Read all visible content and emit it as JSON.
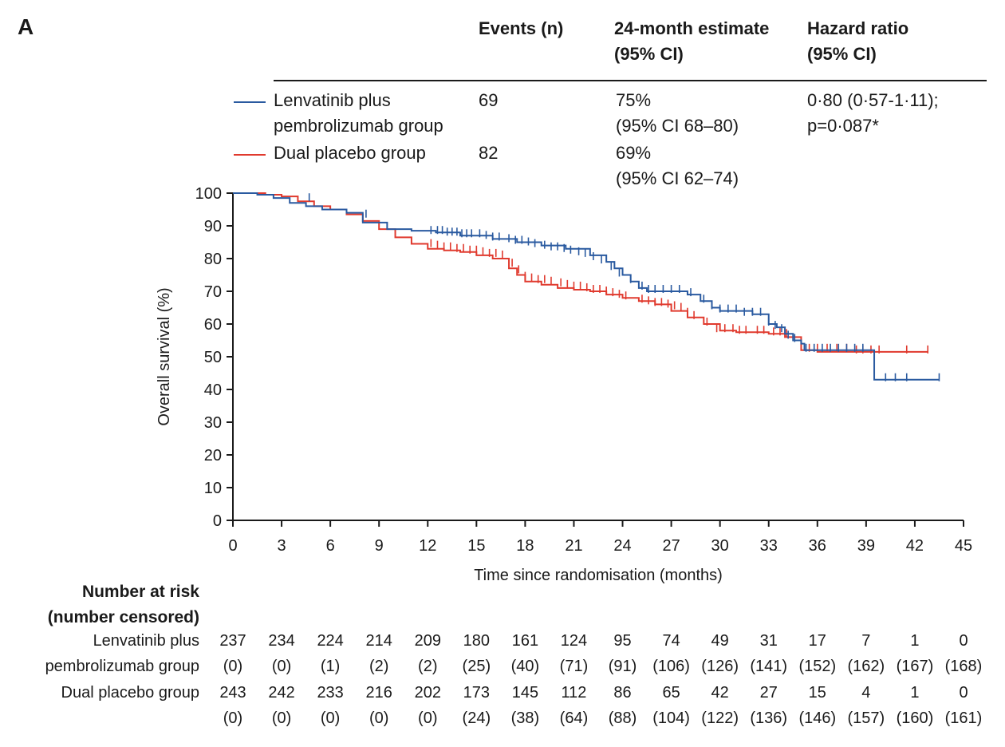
{
  "panel_label": "A",
  "table": {
    "headers": {
      "events": "Events (n)",
      "estimate": "24-month estimate\n(95% CI)",
      "hr": "Hazard ratio\n(95% CI)"
    },
    "rows": [
      {
        "group": "Lenvatinib plus\npembrolizumab group",
        "events": "69",
        "estimate": "75%\n(95% CI 68–80)",
        "hr": "0·80 (0·57-1·11);\np=0·087*"
      },
      {
        "group": "Dual placebo group",
        "events": "82",
        "estimate": "69%\n(95% CI 62–74)",
        "hr": ""
      }
    ]
  },
  "colors": {
    "lenvatinib": "#2a5aa0",
    "placebo": "#e03a2e",
    "axis": "#1a1a1a"
  },
  "risk_table": {
    "title": "Number at risk\n(number censored)",
    "rows": [
      {
        "label1": "Lenvatinib plus",
        "label2": "pembrolizumab group",
        "at_risk": [
          "237",
          "234",
          "224",
          "214",
          "209",
          "180",
          "161",
          "124",
          "95",
          "74",
          "49",
          "31",
          "17",
          "7",
          "1",
          "0"
        ],
        "censored": [
          "(0)",
          "(0)",
          "(1)",
          "(2)",
          "(2)",
          "(25)",
          "(40)",
          "(71)",
          "(91)",
          "(106)",
          "(126)",
          "(141)",
          "(152)",
          "(162)",
          "(167)",
          "(168)"
        ]
      },
      {
        "label1": "Dual placebo group",
        "label2": "",
        "at_risk": [
          "243",
          "242",
          "233",
          "216",
          "202",
          "173",
          "145",
          "112",
          "86",
          "65",
          "42",
          "27",
          "15",
          "4",
          "1",
          "0"
        ],
        "censored": [
          "(0)",
          "(0)",
          "(0)",
          "(0)",
          "(0)",
          "(24)",
          "(38)",
          "(64)",
          "(88)",
          "(104)",
          "(122)",
          "(136)",
          "(146)",
          "(157)",
          "(160)",
          "(161)"
        ]
      }
    ]
  },
  "chart_data": {
    "type": "line",
    "xlabel": "Time since randomisation (months)",
    "ylabel": "Overall survival (%)",
    "xlim": [
      0,
      45
    ],
    "ylim": [
      0,
      100
    ],
    "xticks": [
      0,
      3,
      6,
      9,
      12,
      15,
      18,
      21,
      24,
      27,
      30,
      33,
      36,
      39,
      42,
      45
    ],
    "yticks": [
      0,
      10,
      20,
      30,
      40,
      50,
      60,
      70,
      80,
      90,
      100
    ],
    "grid": false,
    "legend_placement": "top (table)",
    "series": [
      {
        "name": "Lenvatinib plus pembrolizumab group",
        "color": "#2a5aa0",
        "x": [
          0,
          1.5,
          2.5,
          3.5,
          4.5,
          5.5,
          7,
          8,
          9.5,
          11,
          12.5,
          14,
          16,
          17.5,
          19,
          20.5,
          22,
          23,
          23.5,
          24,
          24.5,
          25,
          25.5,
          26,
          28,
          28.8,
          29.5,
          30,
          32,
          33,
          33.5,
          34,
          34.5,
          35,
          35.2,
          36,
          37,
          38,
          39,
          39.5,
          43.5
        ],
        "y": [
          100,
          99.5,
          98.5,
          97,
          96,
          95,
          94,
          91,
          89,
          88.5,
          88,
          87,
          86,
          85,
          84,
          83,
          81,
          79,
          77,
          75,
          73,
          71,
          70,
          70,
          69,
          67,
          65,
          64,
          63,
          60,
          59,
          57,
          55,
          54,
          52,
          52,
          52,
          52,
          52,
          43,
          43
        ],
        "censor_x": [
          4.7,
          8.2,
          12.2,
          12.6,
          12.9,
          13.2,
          13.5,
          13.8,
          14.1,
          14.4,
          14.7,
          15.2,
          15.6,
          16,
          16.4,
          17,
          17.4,
          17.8,
          18.2,
          18.6,
          19.2,
          19.6,
          20,
          20.4,
          20.8,
          21.3,
          21.7,
          22.2,
          22.7,
          23.3,
          23.8,
          24.5,
          25.2,
          25.6,
          26,
          26.5,
          27,
          27.5,
          28.2,
          29,
          29.5,
          30,
          30.5,
          31,
          31.5,
          32,
          32.5,
          33,
          33.4,
          33.8,
          34.2,
          34.6,
          35.3,
          35.8,
          36.3,
          36.8,
          37.3,
          37.8,
          38.3,
          38.8,
          40.2,
          40.8,
          41.5,
          43.5
        ],
        "censor_y": [
          98,
          93,
          88,
          88,
          88,
          87.5,
          87.5,
          87.5,
          87,
          87,
          87,
          87,
          86.5,
          86,
          86,
          85.5,
          85,
          85,
          84.5,
          84,
          83.5,
          83,
          83,
          82.5,
          82,
          81.5,
          81,
          80,
          79,
          77,
          75,
          73,
          71,
          70,
          70,
          70,
          70,
          70,
          69,
          67,
          65,
          64,
          64,
          64,
          63,
          63,
          63,
          60,
          59,
          58,
          56,
          55,
          52,
          52,
          52,
          52,
          52,
          52,
          52,
          52,
          43,
          43,
          43,
          43
        ]
      },
      {
        "name": "Dual placebo group",
        "color": "#e03a2e",
        "x": [
          0,
          2,
          3,
          4,
          5,
          6,
          7,
          8,
          9,
          10,
          11,
          12,
          13,
          14,
          15,
          16,
          17,
          17.5,
          18,
          19,
          20,
          21,
          22,
          23,
          24,
          25,
          26,
          27,
          28,
          29,
          30,
          31,
          32,
          33,
          34,
          35,
          36,
          37,
          38,
          39,
          40,
          42.8
        ],
        "y": [
          100,
          99.5,
          99,
          97.5,
          96,
          95,
          93.5,
          91.5,
          89,
          86.5,
          84.5,
          83,
          82.5,
          82,
          81,
          80,
          77,
          75,
          73,
          72,
          71,
          70.5,
          70,
          69,
          68,
          67,
          66,
          64,
          62,
          60,
          58,
          57.5,
          57.5,
          57,
          56,
          52,
          51.5,
          51.5,
          51.5,
          51.5,
          51.5,
          51.5
        ],
        "censor_x": [
          12.2,
          12.6,
          13,
          13.4,
          13.8,
          14.2,
          14.6,
          15,
          15.4,
          15.8,
          16.2,
          16.6,
          17.2,
          17.6,
          18,
          18.4,
          18.8,
          19.2,
          19.6,
          20.2,
          20.6,
          21,
          21.4,
          21.8,
          22.2,
          22.6,
          23,
          23.4,
          23.8,
          24.2,
          25.2,
          25.6,
          26,
          26.4,
          26.8,
          27.2,
          27.6,
          28,
          28.4,
          29.2,
          29.8,
          30.3,
          30.8,
          31.2,
          31.6,
          32.3,
          32.7,
          33.3,
          33.7,
          34.1,
          35.5,
          36,
          36.6,
          37.2,
          37.8,
          38.4,
          38.8,
          39.3,
          39.8,
          41.5,
          42.8
        ],
        "censor_y": [
          84,
          83.5,
          83,
          83,
          82.5,
          82.5,
          82,
          82,
          81.5,
          81,
          81,
          80.5,
          78,
          76,
          74,
          73.5,
          73,
          73,
          72.5,
          72,
          71.5,
          71,
          71,
          70.5,
          70,
          70,
          69.5,
          69,
          68.5,
          68,
          67,
          66.5,
          66,
          66,
          65.5,
          65,
          64.5,
          63,
          62,
          60,
          58,
          58,
          58,
          57.5,
          57.5,
          57.5,
          57.5,
          57,
          57,
          56.5,
          52,
          52,
          52,
          52,
          52,
          51.5,
          51.5,
          51.5,
          51.5,
          51.5,
          51.5
        ]
      }
    ]
  }
}
